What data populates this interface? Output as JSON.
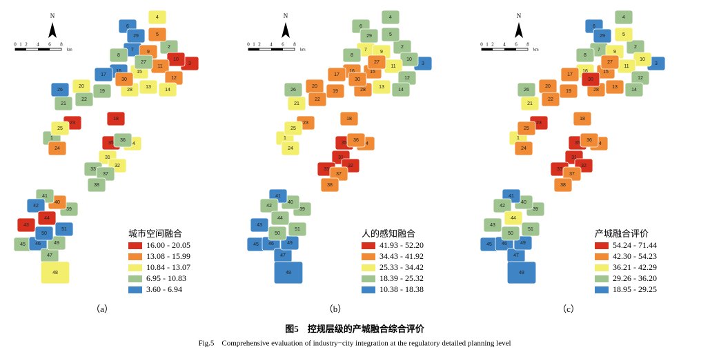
{
  "districts": [
    "1",
    "2",
    "3",
    "4",
    "5",
    "6",
    "7",
    "8",
    "9",
    "10",
    "11",
    "12",
    "13",
    "14",
    "15",
    "16",
    "17",
    "18",
    "19",
    "20",
    "21",
    "22",
    "23",
    "24",
    "25",
    "26",
    "27",
    "28",
    "29",
    "30",
    "31",
    "32",
    "33",
    "34",
    "35",
    "36",
    "37",
    "38",
    "39",
    "40",
    "41",
    "42",
    "43",
    "44",
    "45",
    "46",
    "47",
    "48",
    "49",
    "50",
    "51"
  ],
  "north": "N",
  "scale": {
    "ticks": [
      "0",
      "1",
      "2",
      "4",
      "6",
      "8"
    ],
    "unit": "km"
  },
  "panels": [
    {
      "label": "（a）",
      "legend_title": "城市空间融合",
      "legend": [
        {
          "range": "16.00 - 20.05",
          "color": "#d7301f"
        },
        {
          "range": "13.08 - 15.99",
          "color": "#f08a35"
        },
        {
          "range": "10.84 - 13.07",
          "color": "#f3ee6c"
        },
        {
          "range": "6.95 - 10.83",
          "color": "#9fc48f"
        },
        {
          "range": "3.60 - 6.94",
          "color": "#3f84c4"
        }
      ],
      "classes": [
        3,
        3,
        0,
        2,
        1,
        4,
        4,
        3,
        1,
        0,
        1,
        1,
        2,
        2,
        2,
        4,
        4,
        0,
        3,
        2,
        3,
        3,
        0,
        1,
        2,
        4,
        3,
        2,
        4,
        1,
        2,
        2,
        3,
        2,
        0,
        3,
        3,
        3,
        3,
        1,
        3,
        4,
        0,
        0,
        3,
        4,
        3,
        2,
        3,
        4,
        4
      ]
    },
    {
      "label": "（b）",
      "legend_title": "人的感知融合",
      "legend": [
        {
          "range": "41.93 - 52.20",
          "color": "#d7301f"
        },
        {
          "range": "34.43 - 41.92",
          "color": "#f08a35"
        },
        {
          "range": "25.33 - 34.42",
          "color": "#f3ee6c"
        },
        {
          "range": "18.39 - 25.32",
          "color": "#9fc48f"
        },
        {
          "range": "10.38 - 18.38",
          "color": "#3f84c4"
        }
      ],
      "classes": [
        2,
        3,
        4,
        3,
        3,
        3,
        2,
        3,
        2,
        3,
        2,
        3,
        2,
        3,
        1,
        1,
        1,
        1,
        1,
        1,
        2,
        1,
        1,
        2,
        2,
        3,
        1,
        1,
        3,
        1,
        0,
        0,
        0,
        1,
        0,
        1,
        1,
        1,
        3,
        3,
        4,
        3,
        4,
        3,
        4,
        4,
        4,
        4,
        4,
        3,
        3
      ]
    },
    {
      "label": "（c）",
      "legend_title": "产城融合评价",
      "legend": [
        {
          "range": "54.24 - 71.44",
          "color": "#d7301f"
        },
        {
          "range": "42.30 - 54.23",
          "color": "#f08a35"
        },
        {
          "range": "36.21 - 42.29",
          "color": "#f3ee6c"
        },
        {
          "range": "29.26 - 36.20",
          "color": "#9fc48f"
        },
        {
          "range": "18.95 - 29.25",
          "color": "#3f84c4"
        }
      ],
      "classes": [
        2,
        3,
        4,
        3,
        2,
        4,
        3,
        3,
        2,
        2,
        2,
        3,
        1,
        3,
        1,
        2,
        1,
        1,
        1,
        1,
        2,
        1,
        0,
        1,
        1,
        3,
        1,
        1,
        4,
        0,
        0,
        0,
        0,
        1,
        0,
        1,
        1,
        1,
        3,
        3,
        4,
        3,
        3,
        2,
        4,
        4,
        4,
        4,
        4,
        3,
        3
      ]
    }
  ],
  "caption": {
    "cn": "图5　控规层级的产城融合综合评价",
    "en": "Fig.5　Comprehensive evaluation of industry−city integration at the regulatory detailed planning level"
  }
}
